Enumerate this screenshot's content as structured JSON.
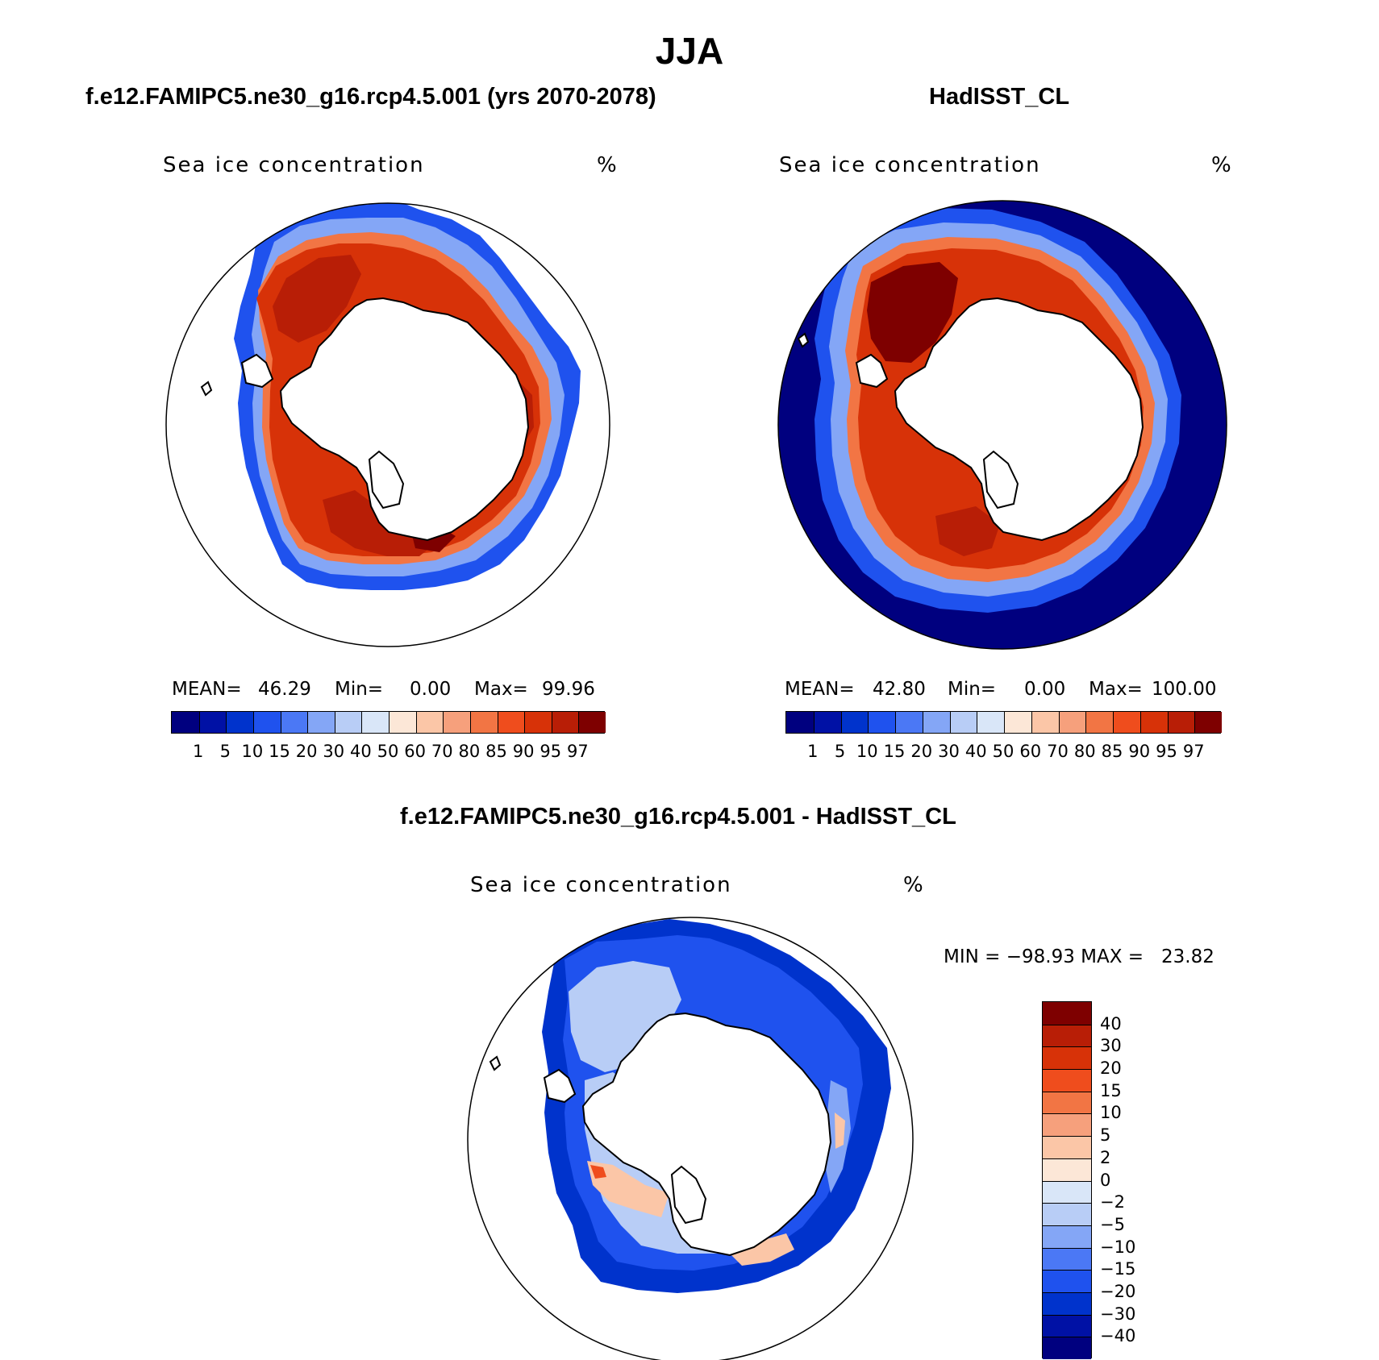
{
  "figure": {
    "title": "JJA"
  },
  "panels": [
    {
      "title": "f.e12.FAMIPC5.ne30_g16.rcp4.5.001 (yrs 2070-2078)",
      "variable": "Sea ice concentration",
      "units": "%",
      "stats": {
        "mean_label": "MEAN=",
        "mean": "46.29",
        "min_label": "Min=",
        "min": "0.00",
        "max_label": "Max=",
        "max": "99.96"
      }
    },
    {
      "title": "HadISST_CL",
      "variable": "Sea ice concentration",
      "units": "%",
      "stats": {
        "mean_label": "MEAN=",
        "mean": "42.80",
        "min_label": "Min=",
        "min": "0.00",
        "max_label": "Max=",
        "max": "100.00"
      }
    },
    {
      "title": "f.e12.FAMIPC5.ne30_g16.rcp4.5.001 - HadISST_CL",
      "variable": "Sea ice concentration",
      "units": "%",
      "stats": {
        "minmax": "MIN = −98.93 MAX =   23.82"
      }
    }
  ],
  "colorbars": {
    "concentration": {
      "labels": [
        "1",
        "5",
        "10",
        "15",
        "20",
        "30",
        "40",
        "50",
        "60",
        "70",
        "80",
        "85",
        "90",
        "95",
        "97"
      ],
      "colors": [
        "#00007f",
        "#0011a5",
        "#0033cc",
        "#1f52ee",
        "#4b78f5",
        "#84a6f6",
        "#b8cdf6",
        "#d9e6f8",
        "#fce7d7",
        "#fbc6a7",
        "#f6a07c",
        "#f27544",
        "#ef4d1d",
        "#d73208",
        "#b81e06",
        "#7e0000"
      ]
    },
    "difference": {
      "labels": [
        "40",
        "30",
        "20",
        "15",
        "10",
        "5",
        "2",
        "0",
        "−2",
        "−5",
        "−10",
        "−15",
        "−20",
        "−30",
        "−40"
      ],
      "colors": [
        "#7e0000",
        "#b81e06",
        "#d73208",
        "#ef4d1d",
        "#f27544",
        "#f6a07c",
        "#fbc6a7",
        "#fce7d7",
        "#d9e6f8",
        "#b8cdf6",
        "#84a6f6",
        "#4b78f5",
        "#1f52ee",
        "#0033cc",
        "#0011a5",
        "#00007f"
      ]
    }
  }
}
